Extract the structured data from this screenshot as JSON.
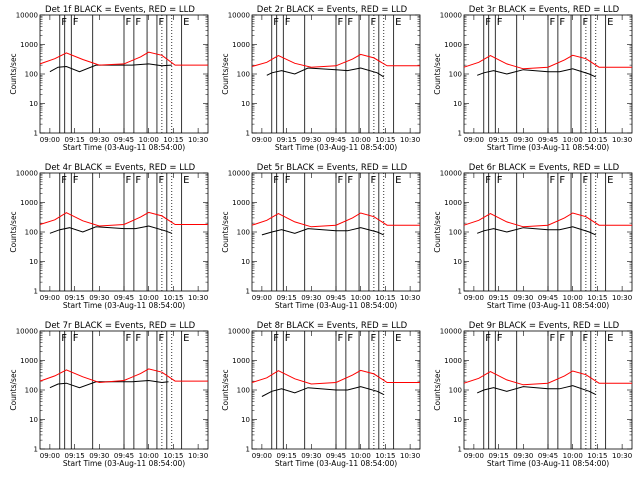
{
  "chart_data": {
    "type": "line",
    "ylabel": "Counts/sec",
    "xlabel": "Start Time (03-Aug-11 08:54:00)",
    "yscale": "log",
    "ylim": [
      1,
      10000
    ],
    "ytick_labels": [
      "1",
      "10",
      "100",
      "1000",
      "10000"
    ],
    "xlim": [
      "08:54",
      "10:36"
    ],
    "xtick_labels": [
      "09:00",
      "09:15",
      "09:30",
      "09:45",
      "10:00",
      "10:15",
      "10:30"
    ],
    "grid": false,
    "series_colors": {
      "events": "#000000",
      "lld": "#ff0000"
    },
    "flag_times": [
      "09:06",
      "09:09",
      "09:13",
      "09:26",
      "09:45",
      "09:51",
      "09:59",
      "10:05",
      "10:11",
      "10:20"
    ],
    "dotted_times": [
      "10:08",
      "10:14"
    ],
    "flag_labels": [
      "F",
      "F",
      "F",
      "F",
      "F",
      "E"
    ],
    "panels": [
      {
        "title": "Det 1f BLACK = Events, RED = LLD",
        "lld": {
          "x": [
            "08:54",
            "09:03",
            "09:10",
            "09:20",
            "09:30",
            "09:45",
            "09:55",
            "10:00",
            "10:08",
            "10:16",
            "10:36"
          ],
          "y": [
            220,
            330,
            520,
            310,
            200,
            220,
            380,
            550,
            430,
            200,
            200
          ]
        },
        "events": {
          "x": [
            "09:00",
            "09:05",
            "09:10",
            "09:18",
            "09:28",
            "09:40",
            "09:50",
            "10:00",
            "10:08",
            "10:14"
          ],
          "y": [
            120,
            170,
            180,
            120,
            200,
            200,
            200,
            220,
            190,
            200
          ]
        }
      },
      {
        "title": "Det 2r BLACK = Events, RED = LLD",
        "lld": {
          "x": [
            "08:54",
            "09:03",
            "09:10",
            "09:20",
            "09:30",
            "09:45",
            "09:55",
            "10:00",
            "10:08",
            "10:16",
            "10:36"
          ],
          "y": [
            180,
            250,
            420,
            230,
            170,
            190,
            320,
            460,
            350,
            190,
            190
          ]
        },
        "events": {
          "x": [
            "09:03",
            "09:06",
            "09:12",
            "09:20",
            "09:28",
            "09:45",
            "09:52",
            "10:00",
            "10:10",
            "10:14"
          ],
          "y": [
            90,
            110,
            130,
            100,
            160,
            140,
            130,
            160,
            110,
            80
          ]
        }
      },
      {
        "title": "Det 3r BLACK = Events, RED = LLD",
        "lld": {
          "x": [
            "08:54",
            "09:03",
            "09:10",
            "09:20",
            "09:30",
            "09:45",
            "09:55",
            "10:00",
            "10:08",
            "10:16",
            "10:36"
          ],
          "y": [
            170,
            250,
            420,
            220,
            150,
            170,
            300,
            430,
            330,
            170,
            170
          ]
        },
        "events": {
          "x": [
            "09:02",
            "09:06",
            "09:12",
            "09:20",
            "09:30",
            "09:45",
            "09:52",
            "10:00",
            "10:10",
            "10:14"
          ],
          "y": [
            90,
            110,
            130,
            100,
            140,
            120,
            120,
            150,
            100,
            80
          ]
        }
      },
      {
        "title": "Det 4r BLACK = Events, RED = LLD",
        "lld": {
          "x": [
            "08:54",
            "09:03",
            "09:10",
            "09:20",
            "09:30",
            "09:45",
            "09:55",
            "10:00",
            "10:08",
            "10:16",
            "10:36"
          ],
          "y": [
            180,
            260,
            450,
            240,
            160,
            180,
            320,
            460,
            350,
            180,
            180
          ]
        },
        "events": {
          "x": [
            "09:00",
            "09:06",
            "09:12",
            "09:20",
            "09:28",
            "09:45",
            "09:52",
            "10:00",
            "10:10",
            "10:14"
          ],
          "y": [
            90,
            120,
            140,
            100,
            150,
            130,
            130,
            160,
            110,
            90
          ]
        }
      },
      {
        "title": "Det 5r BLACK = Events, RED = LLD",
        "lld": {
          "x": [
            "08:54",
            "09:03",
            "09:10",
            "09:20",
            "09:30",
            "09:45",
            "09:55",
            "10:00",
            "10:08",
            "10:16",
            "10:36"
          ],
          "y": [
            170,
            250,
            420,
            220,
            150,
            170,
            300,
            440,
            330,
            170,
            170
          ]
        },
        "events": {
          "x": [
            "09:00",
            "09:06",
            "09:12",
            "09:20",
            "09:28",
            "09:45",
            "09:52",
            "10:00",
            "10:10",
            "10:14"
          ],
          "y": [
            80,
            100,
            120,
            90,
            130,
            110,
            110,
            140,
            100,
            80
          ]
        }
      },
      {
        "title": "Det 6r BLACK = Events, RED = LLD",
        "lld": {
          "x": [
            "08:54",
            "09:03",
            "09:10",
            "09:20",
            "09:30",
            "09:45",
            "09:55",
            "10:00",
            "10:08",
            "10:16",
            "10:36"
          ],
          "y": [
            170,
            250,
            420,
            220,
            150,
            170,
            300,
            440,
            330,
            170,
            170
          ]
        },
        "events": {
          "x": [
            "09:02",
            "09:06",
            "09:12",
            "09:20",
            "09:30",
            "09:45",
            "09:52",
            "10:00",
            "10:10",
            "10:14"
          ],
          "y": [
            90,
            110,
            130,
            100,
            140,
            120,
            120,
            150,
            100,
            80
          ]
        }
      },
      {
        "title": "Det 7r BLACK = Events, RED = LLD",
        "lld": {
          "x": [
            "08:54",
            "09:03",
            "09:10",
            "09:20",
            "09:30",
            "09:45",
            "09:55",
            "10:00",
            "10:08",
            "10:16",
            "10:36"
          ],
          "y": [
            200,
            300,
            480,
            280,
            180,
            210,
            360,
            520,
            400,
            200,
            200
          ]
        },
        "events": {
          "x": [
            "09:00",
            "09:05",
            "09:10",
            "09:18",
            "09:28",
            "09:40",
            "09:50",
            "10:00",
            "10:08",
            "10:12"
          ],
          "y": [
            120,
            160,
            170,
            120,
            190,
            190,
            190,
            210,
            180,
            190
          ]
        }
      },
      {
        "title": "Det 8r BLACK = Events, RED = LLD",
        "lld": {
          "x": [
            "08:54",
            "09:03",
            "09:10",
            "09:20",
            "09:30",
            "09:45",
            "09:55",
            "10:00",
            "10:08",
            "10:16",
            "10:36"
          ],
          "y": [
            180,
            260,
            450,
            240,
            160,
            180,
            320,
            460,
            350,
            180,
            180
          ]
        },
        "events": {
          "x": [
            "09:00",
            "09:06",
            "09:12",
            "09:20",
            "09:28",
            "09:45",
            "09:52",
            "10:00",
            "10:10",
            "10:14"
          ],
          "y": [
            60,
            90,
            110,
            80,
            120,
            100,
            100,
            130,
            90,
            70
          ]
        }
      },
      {
        "title": "Det 9r BLACK = Events, RED = LLD",
        "lld": {
          "x": [
            "08:54",
            "09:03",
            "09:10",
            "09:20",
            "09:30",
            "09:45",
            "09:55",
            "10:00",
            "10:08",
            "10:16",
            "10:36"
          ],
          "y": [
            170,
            250,
            420,
            220,
            150,
            170,
            300,
            440,
            330,
            170,
            170
          ]
        },
        "events": {
          "x": [
            "09:02",
            "09:06",
            "09:12",
            "09:20",
            "09:30",
            "09:45",
            "09:52",
            "10:00",
            "10:10",
            "10:14"
          ],
          "y": [
            80,
            100,
            120,
            90,
            130,
            110,
            110,
            140,
            90,
            70
          ]
        }
      }
    ]
  }
}
